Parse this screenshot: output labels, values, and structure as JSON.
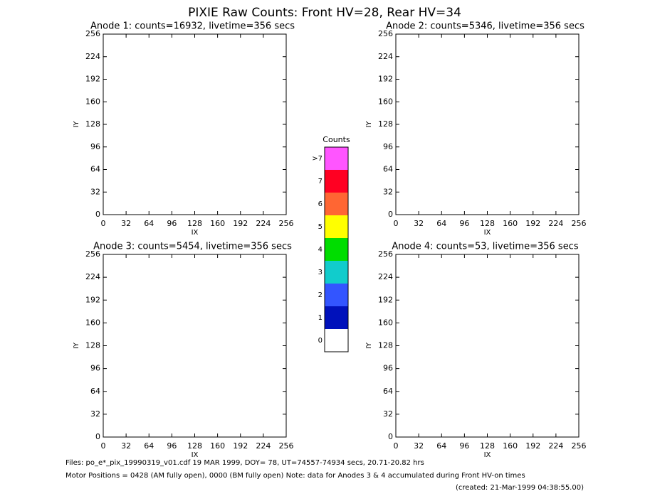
{
  "title": "PIXIE Raw Counts:  Front HV=28, Rear HV=34",
  "chart_data": [
    {
      "type": "image",
      "title": "Anode 1: counts=16932, livetime=356 secs",
      "xlabel": "IX",
      "ylabel": "IY",
      "xlim": [
        0,
        256
      ],
      "ylim": [
        0,
        256
      ],
      "xticks": [
        0,
        32,
        64,
        96,
        128,
        160,
        192,
        224,
        256
      ],
      "yticks": [
        0,
        32,
        64,
        96,
        128,
        160,
        192,
        224,
        256
      ]
    },
    {
      "type": "image",
      "title": "Anode 2: counts=5346, livetime=356 secs",
      "xlabel": "IX",
      "ylabel": "IY",
      "xlim": [
        0,
        256
      ],
      "ylim": [
        0,
        256
      ],
      "xticks": [
        0,
        32,
        64,
        96,
        128,
        160,
        192,
        224,
        256
      ],
      "yticks": [
        0,
        32,
        64,
        96,
        128,
        160,
        192,
        224,
        256
      ]
    },
    {
      "type": "image",
      "title": "Anode 3: counts=5454, livetime=356 secs",
      "xlabel": "IX",
      "ylabel": "IY",
      "xlim": [
        0,
        256
      ],
      "ylim": [
        0,
        256
      ],
      "xticks": [
        0,
        32,
        64,
        96,
        128,
        160,
        192,
        224,
        256
      ],
      "yticks": [
        0,
        32,
        64,
        96,
        128,
        160,
        192,
        224,
        256
      ]
    },
    {
      "type": "image",
      "title": "Anode 4: counts=53, livetime=356 secs",
      "xlabel": "IX",
      "ylabel": "IY",
      "xlim": [
        0,
        256
      ],
      "ylim": [
        0,
        256
      ],
      "xticks": [
        0,
        32,
        64,
        96,
        128,
        160,
        192,
        224,
        256
      ],
      "yticks": [
        0,
        32,
        64,
        96,
        128,
        160,
        192,
        224,
        256
      ]
    }
  ],
  "colorbar": {
    "title": "Counts",
    "labels": [
      ">7",
      "7",
      "6",
      "5",
      "4",
      "3",
      "2",
      "1",
      "0"
    ],
    "colors": [
      "#ff55ff",
      "#ff0022",
      "#ff6633",
      "#ffff00",
      "#00dd00",
      "#11cccc",
      "#3355ff",
      "#0011bb",
      "#ffffff"
    ]
  },
  "footer": {
    "files": "Files: po_e*_pix_19990319_v01.cdf    19 MAR 1999, DOY= 78, UT=74557-74934 secs, 20.71-20.82 hrs",
    "motor": "Motor Positions = 0428 (AM fully open), 0000 (BM fully open)    Note: data for Anodes 3 & 4 accumulated during Front HV-on times",
    "created": "(created: 21-Mar-1999 04:38:55.00)"
  }
}
